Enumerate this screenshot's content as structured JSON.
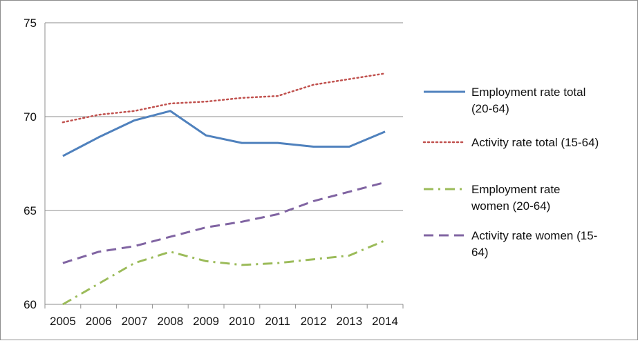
{
  "chart_data": {
    "type": "line",
    "categories": [
      "2005",
      "2006",
      "2007",
      "2008",
      "2009",
      "2010",
      "2011",
      "2012",
      "2013",
      "2014"
    ],
    "ylim": [
      60,
      75
    ],
    "yticks": [
      "60",
      "65",
      "70",
      "75"
    ],
    "grid": "horizontal",
    "legend_position": "right",
    "series": [
      {
        "name_lines": [
          "Employment rate total",
          "(20-64)"
        ],
        "style": "solid",
        "color": "#4f81bd",
        "values": [
          67.9,
          68.9,
          69.8,
          70.3,
          69.0,
          68.6,
          68.6,
          68.4,
          68.4,
          69.2
        ]
      },
      {
        "name_lines": [
          "Activity rate total (15-64)"
        ],
        "style": "dotted",
        "color": "#c0504d",
        "values": [
          69.7,
          70.1,
          70.3,
          70.7,
          70.8,
          71.0,
          71.1,
          71.7,
          72.0,
          72.3
        ]
      },
      {
        "name_lines": [
          "Employment rate",
          "women (20-64)"
        ],
        "style": "dash-dot",
        "color": "#9bbb59",
        "values": [
          60.0,
          61.1,
          62.2,
          62.8,
          62.3,
          62.1,
          62.2,
          62.4,
          62.6,
          63.4
        ]
      },
      {
        "name_lines": [
          "Activity rate women (15-",
          "64)"
        ],
        "style": "dashed",
        "color": "#8064a2",
        "values": [
          62.2,
          62.8,
          63.1,
          63.6,
          64.1,
          64.4,
          64.8,
          65.5,
          66.0,
          66.5
        ]
      }
    ]
  }
}
